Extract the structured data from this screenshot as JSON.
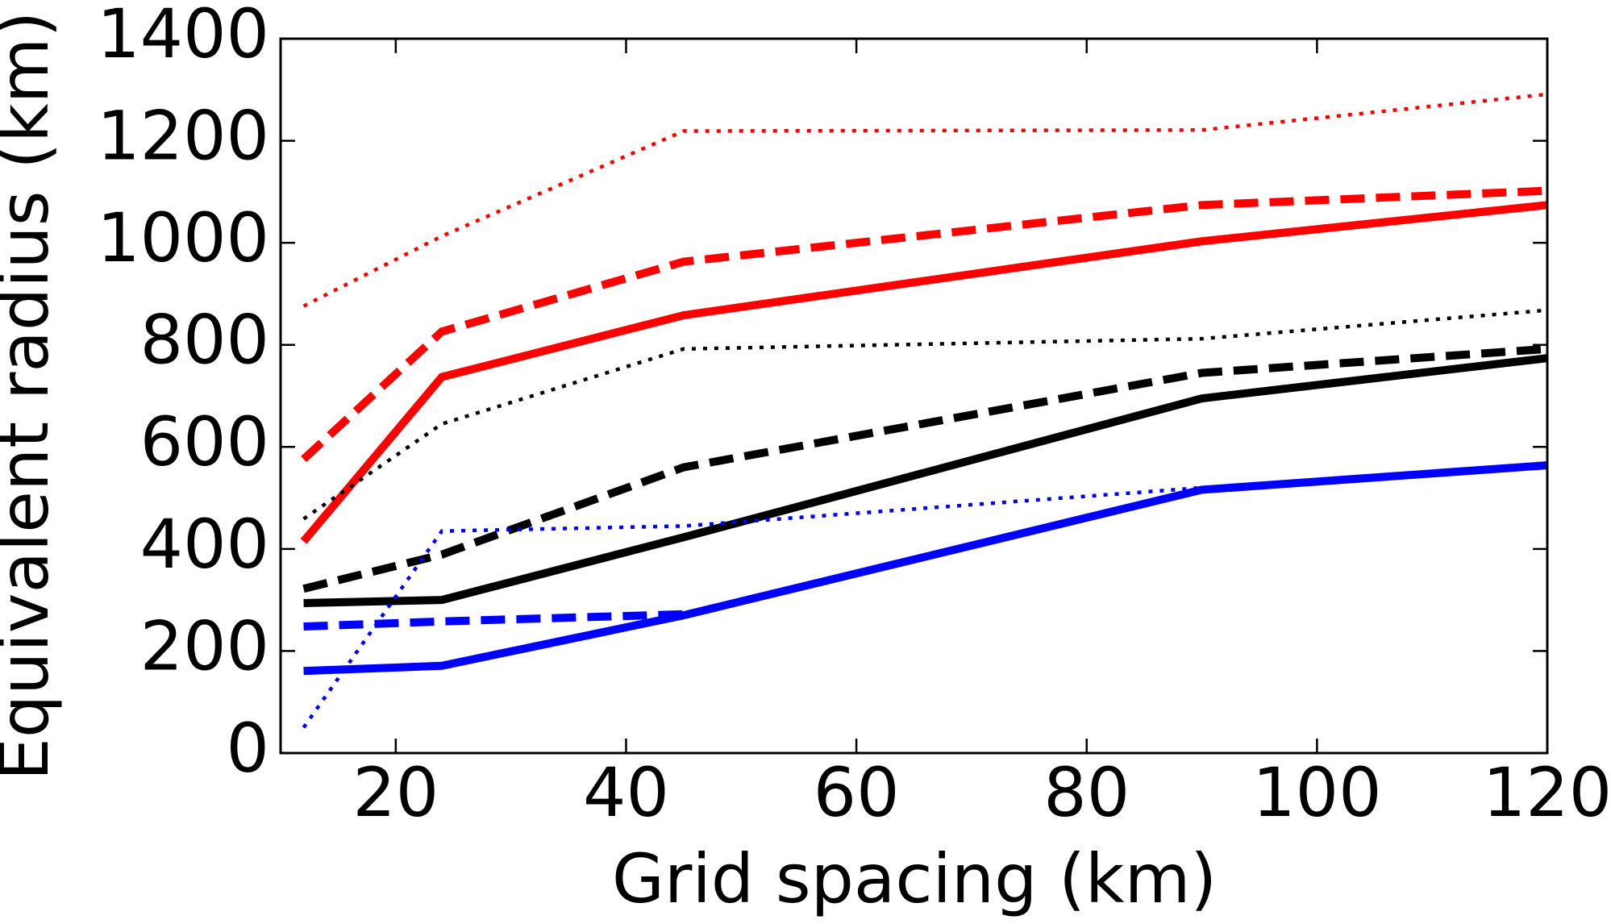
{
  "chart_data": {
    "type": "line",
    "xlabel": "Grid spacing (km)",
    "ylabel": "Equivalent radius (km)",
    "x": [
      12,
      24,
      45,
      90,
      120
    ],
    "xlim": [
      10,
      120
    ],
    "xticks": [
      20,
      40,
      60,
      80,
      100,
      120
    ],
    "ylim": [
      0,
      1400
    ],
    "yticks": [
      0,
      200,
      400,
      600,
      800,
      1000,
      1200,
      1400
    ],
    "series": [
      {
        "color": "#ff0000",
        "dash": "solid",
        "values": [
          415,
          737,
          858,
          1003,
          1074
        ]
      },
      {
        "color": "#ff0000",
        "dash": "dashed",
        "values": [
          576,
          826,
          963,
          1074,
          1102
        ]
      },
      {
        "color": "#ff0000",
        "dash": "dotted",
        "values": [
          876,
          1013,
          1219,
          1221,
          1291
        ]
      },
      {
        "color": "#000000",
        "dash": "solid",
        "values": [
          294,
          300,
          423,
          695,
          774
        ]
      },
      {
        "color": "#000000",
        "dash": "dashed",
        "values": [
          322,
          389,
          560,
          745,
          792
        ]
      },
      {
        "color": "#000000",
        "dash": "dotted",
        "values": [
          459,
          645,
          792,
          812,
          868
        ]
      },
      {
        "color": "#0000ff",
        "dash": "solid",
        "values": [
          161,
          171,
          270,
          516,
          564
        ]
      },
      {
        "color": "#0000ff",
        "dash": "dashed",
        "values": [
          248,
          258,
          272,
          null,
          null
        ]
      },
      {
        "color": "#0000ff",
        "dash": "dotted",
        "values": [
          50,
          435,
          445,
          520,
          null
        ]
      }
    ]
  }
}
